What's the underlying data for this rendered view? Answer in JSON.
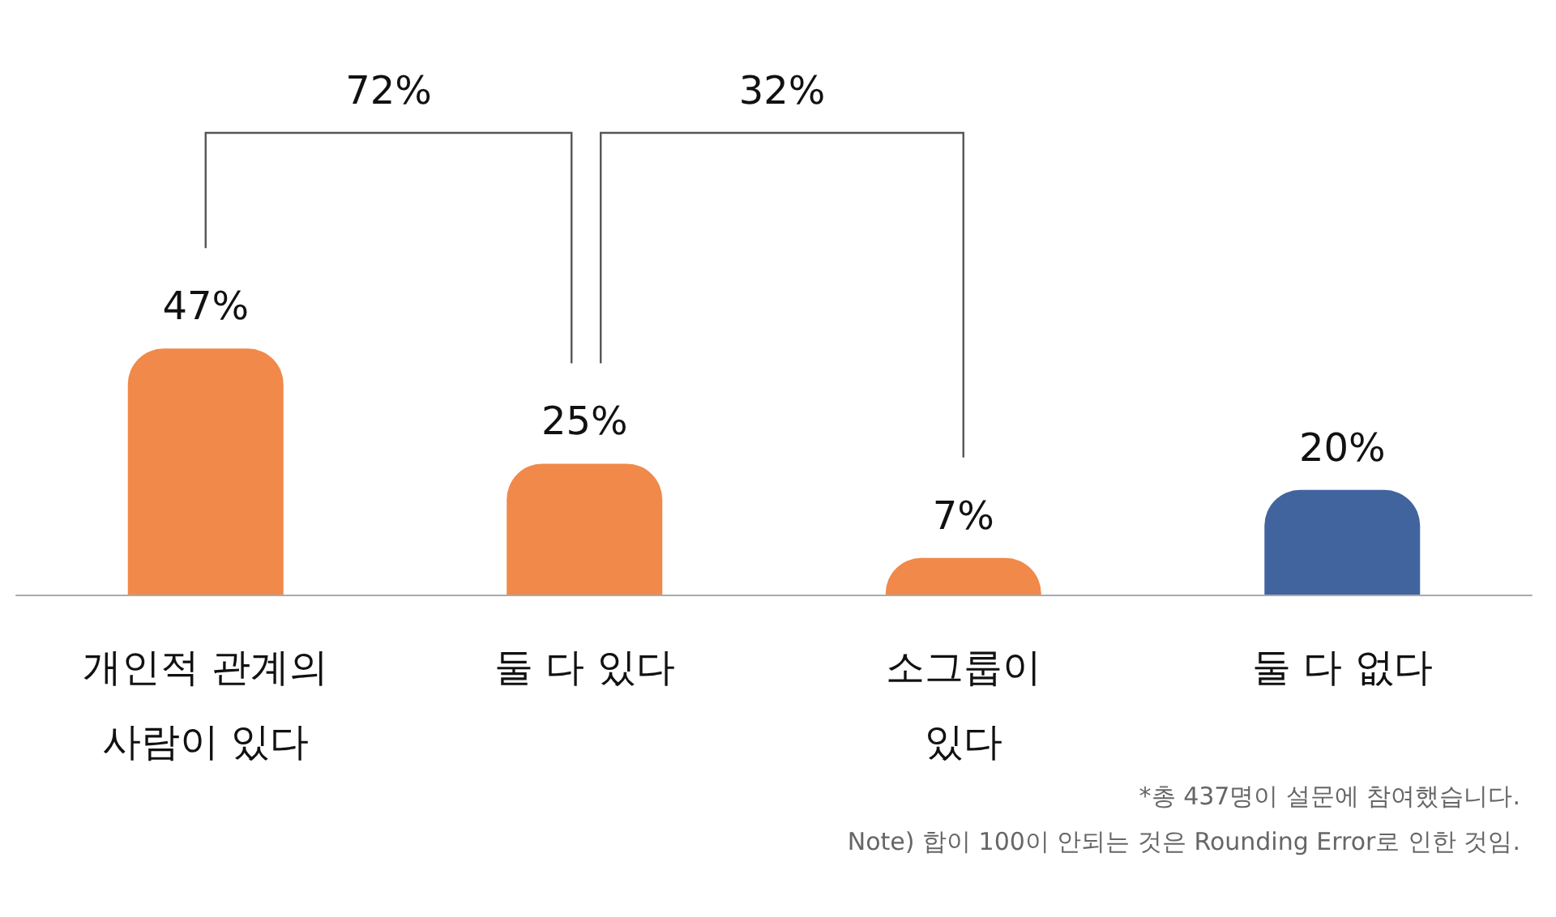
{
  "chart_data": {
    "type": "bar",
    "categories": [
      "개인적 관계의\n사람이 있다",
      "둘 다 있다",
      "소그룹이\n있다",
      "둘 다 없다"
    ],
    "values": [
      47,
      25,
      7,
      20
    ],
    "colors": [
      "#f0894a",
      "#f0894a",
      "#f0894a",
      "#41649f"
    ],
    "value_labels": [
      "47%",
      "25%",
      "7%",
      "20%"
    ],
    "annotations": [
      "72%",
      "32%",
      "*총 437명이 설문에 참여했습니다.",
      "Note) 합이 100이 안되는 것은 Rounding Error로 인한 것임."
    ]
  }
}
